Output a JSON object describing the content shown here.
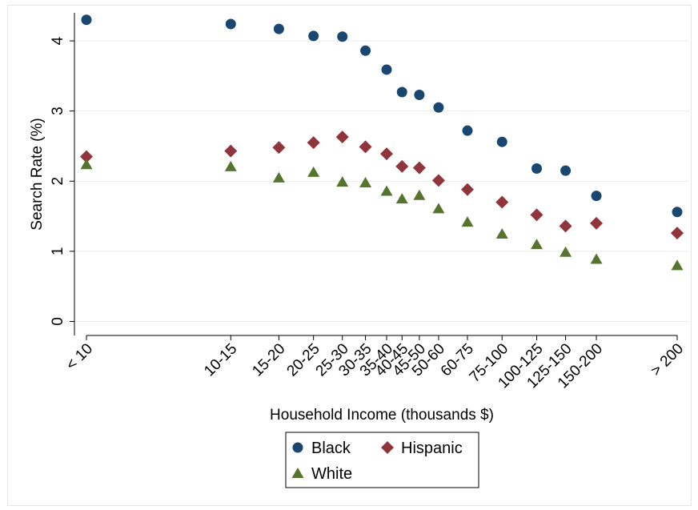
{
  "chart_data": {
    "type": "scatter",
    "title": "",
    "xlabel": "Household Income (thousands $)",
    "ylabel": "Search Rate (%)",
    "ylim": [
      0,
      4.4
    ],
    "grid": true,
    "legend_position": "bottom",
    "categories": [
      "< 10",
      "10-15",
      "15-20",
      "20-25",
      "25-30",
      "30-35",
      "35-40",
      "40-45",
      "45-50",
      "50-60",
      "60-75",
      "75-100",
      "100-125",
      "125-150",
      "150-200",
      "> 200"
    ],
    "category_positions": [
      5,
      12.5,
      15,
      16.8,
      18.3,
      19.5,
      20.6,
      21.4,
      22.3,
      23.3,
      24.8,
      26.6,
      28.4,
      29.9,
      31.5,
      35.7
    ],
    "y_ticks": [
      0,
      1,
      2,
      3,
      4
    ],
    "series": [
      {
        "name": "Black",
        "marker": "circle",
        "color": "#1a476f",
        "values": [
          4.3,
          4.24,
          4.17,
          4.07,
          4.06,
          3.86,
          3.59,
          3.27,
          3.23,
          3.05,
          2.72,
          2.56,
          2.18,
          2.15,
          1.79,
          1.56
        ]
      },
      {
        "name": "Hispanic",
        "marker": "diamond",
        "color": "#90353b",
        "values": [
          2.35,
          2.43,
          2.48,
          2.55,
          2.63,
          2.49,
          2.39,
          2.21,
          2.19,
          2.01,
          1.88,
          1.7,
          1.52,
          1.36,
          1.4,
          1.26
        ]
      },
      {
        "name": "White",
        "marker": "triangle",
        "color": "#55752f",
        "values": [
          2.24,
          2.21,
          2.05,
          2.13,
          1.99,
          1.98,
          1.86,
          1.75,
          1.8,
          1.61,
          1.42,
          1.25,
          1.1,
          0.99,
          0.89,
          0.8
        ]
      }
    ]
  }
}
